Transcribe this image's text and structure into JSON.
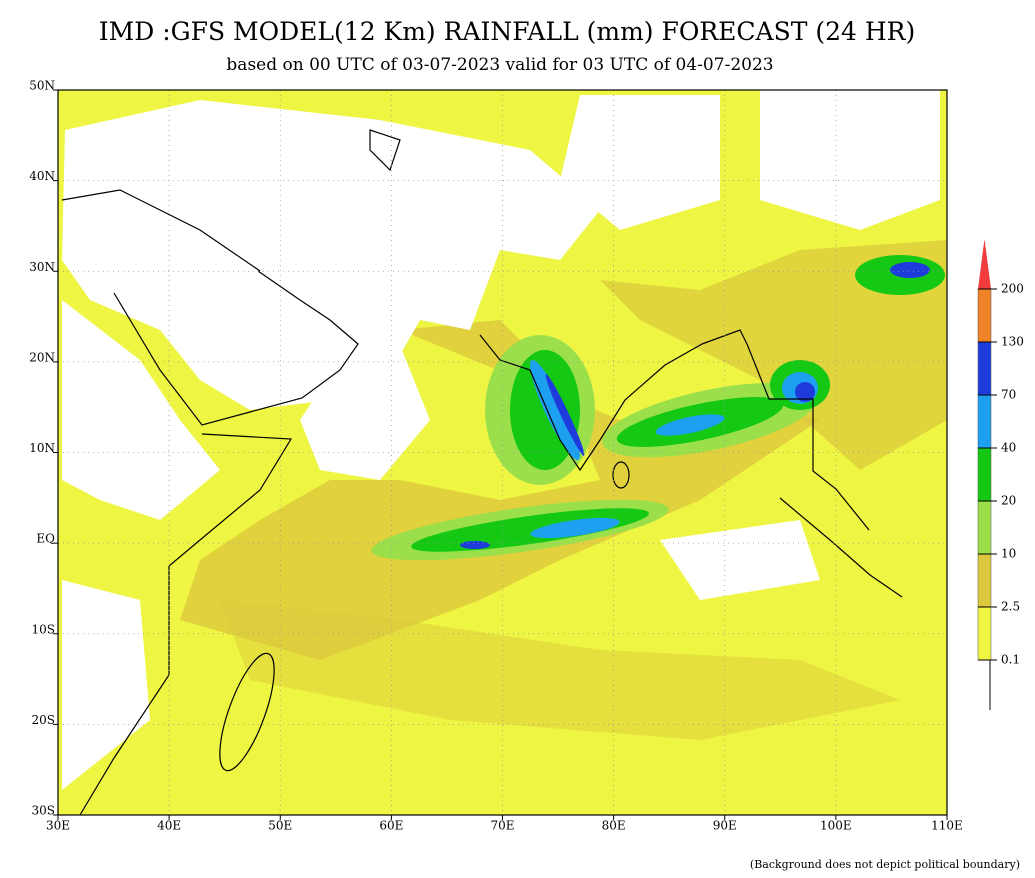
{
  "header": {
    "title": "IMD :GFS MODEL(12 Km) RAINFALL (mm) FORECAST (24 HR)",
    "subtitle": "based on 00 UTC of 03-07-2023 valid for 03 UTC of 04-07-2023"
  },
  "map": {
    "lon_labels": [
      "30E",
      "40E",
      "50E",
      "60E",
      "70E",
      "80E",
      "90E",
      "100E",
      "110E"
    ],
    "lat_labels": [
      "50N",
      "40N",
      "30N",
      "20N",
      "10N",
      "EQ",
      "10S",
      "20S",
      "30S"
    ]
  },
  "legend": {
    "levels": [
      {
        "label": 0.1,
        "color": "#eef542"
      },
      {
        "label": 2.5,
        "color": "#dcc83c"
      },
      {
        "label": 10,
        "color": "#9be04b"
      },
      {
        "label": 20,
        "color": "#14c814"
      },
      {
        "label": 40,
        "color": "#1ea0f0"
      },
      {
        "label": 70,
        "color": "#1e3cdc"
      },
      {
        "label": 130,
        "color": "#f08228"
      },
      {
        "label": 200,
        "color": "#f03c3c"
      }
    ]
  },
  "footnote": "(Background does not depict political boundary)"
}
